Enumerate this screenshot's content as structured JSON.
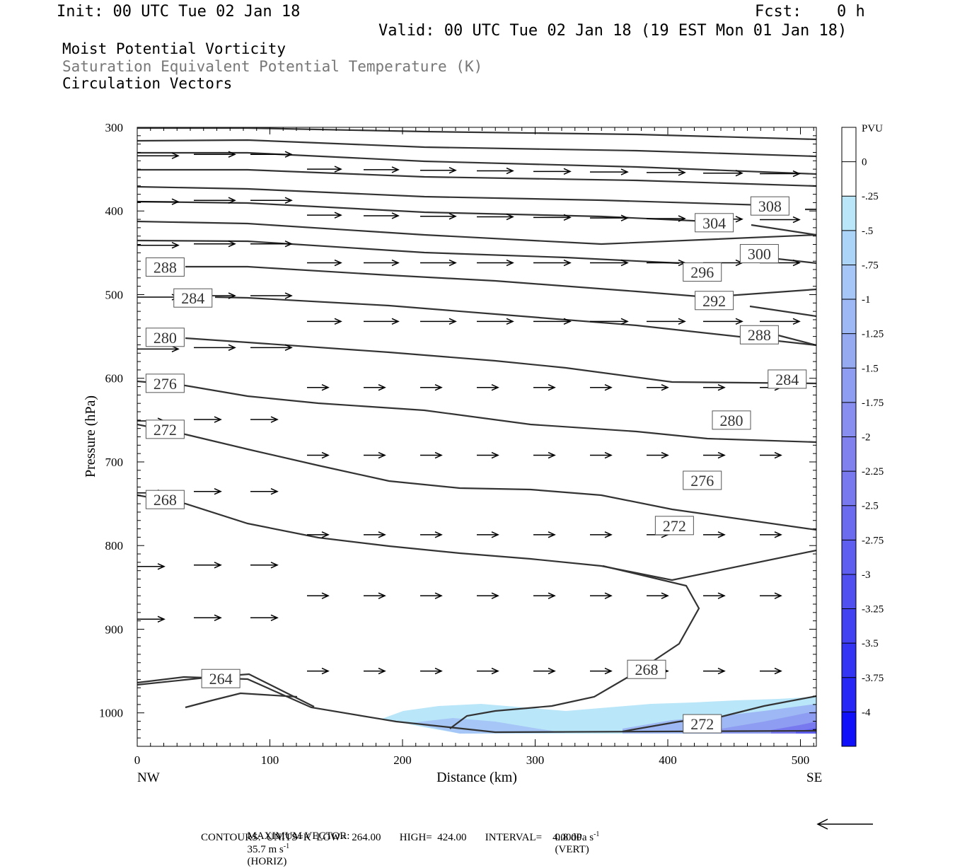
{
  "header": {
    "init": "Init: 00 UTC Tue 02 Jan 18",
    "fcst_label": "Fcst:",
    "fcst_value": "0 h",
    "valid": "Valid: 00 UTC Tue 02 Jan 18 (19 EST Mon 01 Jan 18)",
    "line1": "Moist Potential Vorticity",
    "line2": "Saturation Equivalent Potential Temperature (K)",
    "line3": "Circulation Vectors"
  },
  "colors": {
    "contour": "#333333",
    "vector": "#000000",
    "line2_text": "#777777"
  },
  "chart_data": {
    "type": "cross-section",
    "xlabel": "Distance (km)",
    "ylabel": "Pressure (hPa)",
    "x_ticks": [
      0,
      100,
      200,
      300,
      400,
      500
    ],
    "y_ticks": [
      300,
      400,
      500,
      600,
      700,
      800,
      900,
      1000
    ],
    "xlim": [
      0,
      512
    ],
    "ylim": [
      300,
      1040
    ],
    "y_inverted": true,
    "left_end_label": "NW",
    "right_end_label": "SE",
    "colorbar": {
      "title": "PVU",
      "levels": [
        "0",
        "-.25",
        "-.5",
        "-.75",
        "-1",
        "-1.25",
        "-1.5",
        "-1.75",
        "-2",
        "-2.25",
        "-2.5",
        "-2.75",
        "-3",
        "-3.25",
        "-3.5",
        "-3.75",
        "-4"
      ],
      "colors": [
        "#ffffff",
        "#ffffff",
        "#b9e6f8",
        "#abd4f8",
        "#a5c6f6",
        "#9db8f4",
        "#96aaf2",
        "#8e9cf1",
        "#878ef0",
        "#8080ef",
        "#7878ef",
        "#6b6bef",
        "#5e5ef0",
        "#5050f1",
        "#4242f2",
        "#3434f4",
        "#2626f6",
        "#1010fa"
      ]
    },
    "contour_labels": [
      {
        "text": "308",
        "x": 477,
        "p": 394
      },
      {
        "text": "304",
        "x": 435,
        "p": 414
      },
      {
        "text": "300",
        "x": 469,
        "p": 451
      },
      {
        "text": "296",
        "x": 426,
        "p": 473
      },
      {
        "text": "292",
        "x": 435,
        "p": 507
      },
      {
        "text": "288",
        "x": 469,
        "p": 548
      },
      {
        "text": "284",
        "x": 490,
        "p": 601
      },
      {
        "text": "280",
        "x": 448,
        "p": 650
      },
      {
        "text": "276",
        "x": 426,
        "p": 722
      },
      {
        "text": "272",
        "x": 405,
        "p": 776
      },
      {
        "text": "268",
        "x": 384,
        "p": 948
      },
      {
        "text": "272",
        "x": 426,
        "p": 1013
      },
      {
        "text": "288",
        "x": 21,
        "p": 467
      },
      {
        "text": "284",
        "x": 42,
        "p": 504
      },
      {
        "text": "280",
        "x": 21,
        "p": 551
      },
      {
        "text": "276",
        "x": 21,
        "p": 606
      },
      {
        "text": "272",
        "x": 21,
        "p": 661
      },
      {
        "text": "268",
        "x": 21,
        "p": 745
      },
      {
        "text": "264",
        "x": 63,
        "p": 959
      }
    ],
    "footer": {
      "max_vector_label": "MAXIMUM VECTOR:",
      "max_vector_horiz": "35.7 m s",
      "horiz_unit": "(HORIZ)",
      "max_vector_vert": "0.8 dPa s",
      "vert_unit": "(VERT)",
      "exponent": "-1",
      "contours_line": "CONTOURS:  UNITS=K  LOW=  264.00       HIGH=  424.00       INTERVAL=    4.0000"
    }
  }
}
